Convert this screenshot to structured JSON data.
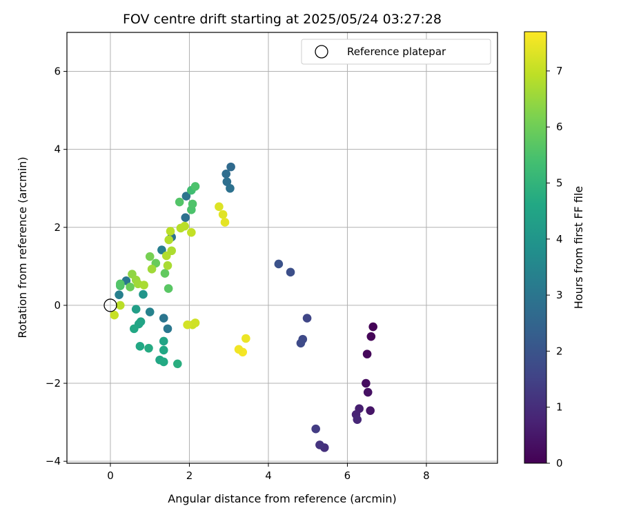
{
  "chart_data": {
    "type": "scatter",
    "title": "FOV centre drift starting at 2025/05/24 03:27:28",
    "xlabel": "Angular distance from reference (arcmin)",
    "ylabel": "Rotation from reference (arcmin)",
    "xlim": [
      -1.1,
      9.8
    ],
    "ylim": [
      -4.05,
      7.0
    ],
    "x_ticks": [
      0,
      2,
      4,
      6,
      8
    ],
    "x_tick_labels": [
      "0",
      "2",
      "4",
      "6",
      "8"
    ],
    "y_ticks": [
      -4,
      -2,
      0,
      2,
      4,
      6
    ],
    "y_tick_labels": [
      "−4",
      "−2",
      "0",
      "2",
      "4",
      "6"
    ],
    "grid": true,
    "legend": {
      "position": "top-right",
      "entries": [
        "Reference platepar"
      ]
    },
    "reference_point": {
      "x": 0,
      "y": 0,
      "marker": "open-circle",
      "color": "#000000"
    },
    "colorbar": {
      "label": "Hours from first FF file",
      "colormap": "viridis",
      "range": [
        0,
        7.7
      ],
      "ticks": [
        0,
        1,
        2,
        3,
        4,
        5,
        6,
        7
      ],
      "tick_labels": [
        "0",
        "1",
        "2",
        "3",
        "4",
        "5",
        "6",
        "7"
      ]
    },
    "series": [
      {
        "points": [
          [
            6.65,
            -0.55,
            0.05
          ],
          [
            6.6,
            -0.8,
            0.1
          ],
          [
            6.5,
            -1.25,
            0.15
          ],
          [
            6.47,
            -2.0,
            0.25
          ],
          [
            6.52,
            -2.23,
            0.35
          ],
          [
            6.58,
            -2.7,
            0.45
          ],
          [
            6.3,
            -2.65,
            0.65
          ],
          [
            6.22,
            -2.8,
            0.75
          ],
          [
            6.25,
            -2.93,
            0.85
          ],
          [
            5.42,
            -3.65,
            1.05
          ],
          [
            5.3,
            -3.58,
            1.15
          ],
          [
            5.2,
            -3.17,
            1.35
          ],
          [
            4.98,
            -0.33,
            1.6
          ],
          [
            4.87,
            -0.87,
            1.7
          ],
          [
            4.82,
            -0.97,
            1.75
          ],
          [
            4.56,
            0.85,
            1.85
          ],
          [
            4.26,
            1.06,
            1.95
          ],
          [
            3.05,
            3.55,
            2.65
          ],
          [
            2.93,
            3.37,
            2.75
          ],
          [
            2.95,
            3.17,
            2.8
          ],
          [
            3.03,
            3.0,
            2.85
          ],
          [
            1.92,
            2.8,
            2.95
          ],
          [
            1.9,
            2.25,
            2.85
          ],
          [
            1.55,
            1.75,
            2.9
          ],
          [
            1.35,
            -0.33,
            3.0
          ],
          [
            1.45,
            -0.6,
            3.05
          ],
          [
            1.3,
            1.42,
            3.25
          ],
          [
            0.4,
            0.63,
            3.05
          ],
          [
            0.22,
            0.27,
            3.3
          ],
          [
            1.0,
            -0.17,
            3.4
          ],
          [
            0.83,
            0.28,
            4.0
          ],
          [
            0.65,
            -0.1,
            4.3
          ],
          [
            0.77,
            -0.42,
            4.5
          ],
          [
            0.72,
            -0.48,
            4.5
          ],
          [
            0.6,
            -0.6,
            4.6
          ],
          [
            0.75,
            -1.05,
            4.6
          ],
          [
            0.97,
            -1.1,
            4.7
          ],
          [
            1.35,
            -0.92,
            4.5
          ],
          [
            1.35,
            -1.15,
            4.6
          ],
          [
            1.25,
            -1.4,
            4.55
          ],
          [
            1.35,
            -1.45,
            4.65
          ],
          [
            1.7,
            -1.5,
            4.8
          ],
          [
            2.05,
            2.95,
            5.3
          ],
          [
            2.15,
            3.05,
            5.5
          ],
          [
            2.05,
            2.45,
            5.5
          ],
          [
            2.08,
            2.6,
            5.55
          ],
          [
            1.75,
            2.65,
            5.6
          ],
          [
            1.47,
            0.43,
            5.7
          ],
          [
            1.38,
            0.82,
            5.8
          ],
          [
            1.15,
            1.08,
            5.9
          ],
          [
            1.0,
            1.25,
            6.1
          ],
          [
            0.25,
            0.5,
            5.5
          ],
          [
            0.25,
            0.55,
            5.6
          ],
          [
            0.5,
            0.47,
            5.9
          ],
          [
            0.55,
            0.8,
            6.4
          ],
          [
            0.65,
            0.65,
            6.5
          ],
          [
            0.7,
            0.55,
            6.6
          ],
          [
            0.85,
            0.52,
            6.7
          ],
          [
            1.05,
            0.93,
            6.6
          ],
          [
            1.45,
            1.02,
            6.7
          ],
          [
            1.42,
            1.27,
            6.8
          ],
          [
            1.55,
            1.4,
            6.75
          ],
          [
            1.48,
            1.68,
            6.8
          ],
          [
            1.52,
            1.9,
            6.9
          ],
          [
            1.78,
            1.98,
            6.85
          ],
          [
            1.88,
            2.03,
            6.9
          ],
          [
            2.05,
            1.87,
            7.0
          ],
          [
            0.25,
            0.0,
            6.9
          ],
          [
            0.1,
            -0.25,
            7.05
          ],
          [
            2.08,
            -0.5,
            7.1
          ],
          [
            2.15,
            -0.45,
            7.15
          ],
          [
            1.95,
            -0.5,
            7.2
          ],
          [
            2.75,
            2.53,
            7.3
          ],
          [
            2.85,
            2.33,
            7.35
          ],
          [
            2.9,
            2.13,
            7.4
          ],
          [
            3.43,
            -0.85,
            7.5
          ],
          [
            3.35,
            -1.2,
            7.6
          ],
          [
            3.25,
            -1.13,
            7.55
          ]
        ]
      }
    ]
  }
}
